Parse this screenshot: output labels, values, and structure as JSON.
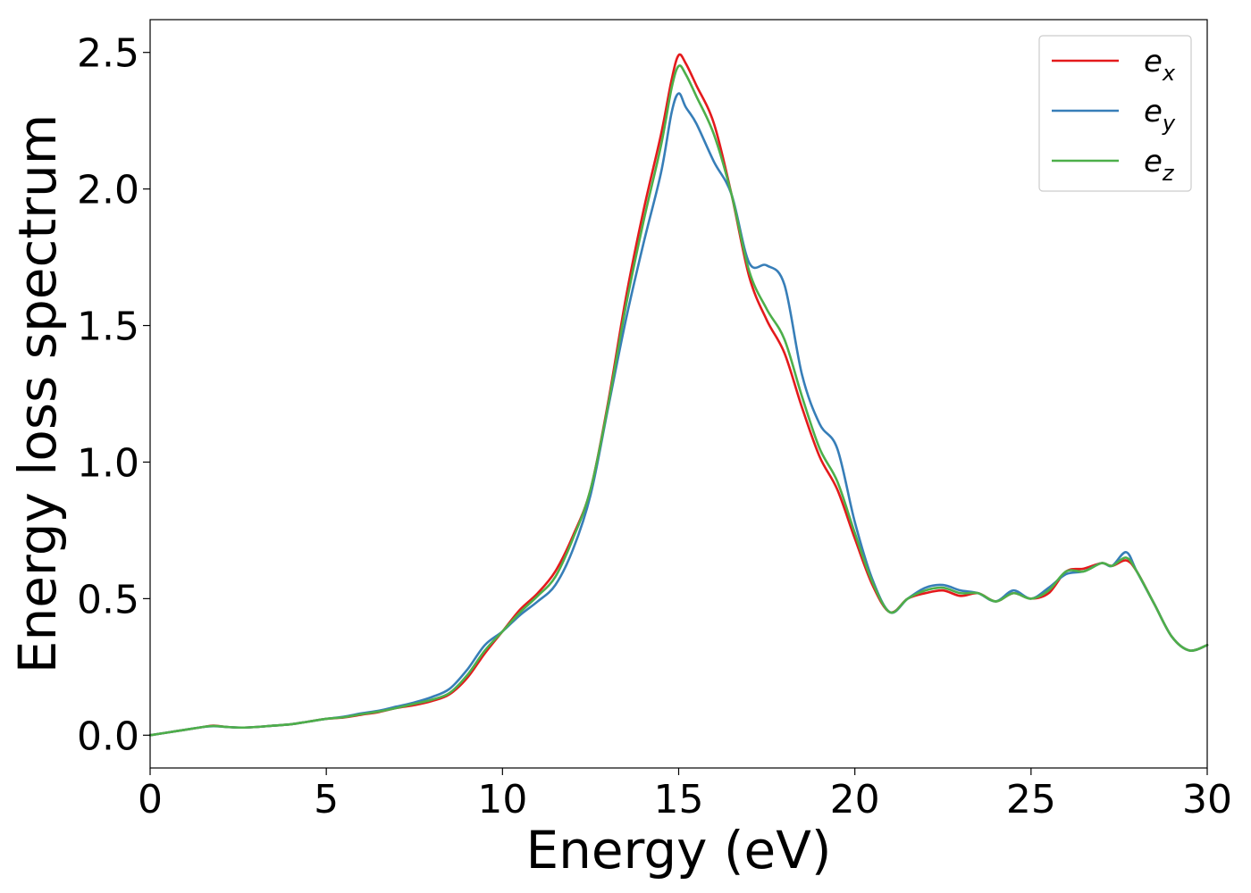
{
  "chart_data": {
    "type": "line",
    "title": "",
    "xlabel": "Energy (eV)",
    "ylabel": "Energy loss spectrum",
    "xlim": [
      0,
      30
    ],
    "ylim": [
      -0.12,
      2.62
    ],
    "xticks": [
      0,
      5,
      10,
      15,
      20,
      25,
      30
    ],
    "xtick_labels": [
      "0",
      "5",
      "10",
      "15",
      "20",
      "25",
      "30"
    ],
    "yticks": [
      0.0,
      0.5,
      1.0,
      1.5,
      2.0,
      2.5
    ],
    "ytick_labels": [
      "0.0",
      "0.5",
      "1.0",
      "1.5",
      "2.0",
      "2.5"
    ],
    "grid": false,
    "legend_position": "top-right",
    "x": [
      0,
      0.5,
      1,
      1.5,
      1.8,
      2.2,
      2.6,
      3,
      3.5,
      4,
      4.5,
      5,
      5.5,
      6,
      6.5,
      7,
      7.5,
      8,
      8.5,
      9,
      9.5,
      10,
      10.5,
      11,
      11.5,
      12,
      12.5,
      13,
      13.5,
      14,
      14.5,
      14.8,
      15,
      15.2,
      15.5,
      16,
      16.5,
      17,
      17.5,
      18,
      18.5,
      19,
      19.5,
      20,
      20.5,
      21,
      21.5,
      22,
      22.5,
      23,
      23.5,
      24,
      24.5,
      25,
      25.5,
      26,
      26.5,
      27,
      27.3,
      27.7,
      28,
      28.5,
      29,
      29.5,
      30
    ],
    "series": [
      {
        "name_base": "e",
        "name_sub": "x",
        "color": "#e41a1c",
        "values": [
          0.0,
          0.01,
          0.02,
          0.03,
          0.035,
          0.03,
          0.028,
          0.03,
          0.035,
          0.04,
          0.05,
          0.06,
          0.065,
          0.075,
          0.085,
          0.1,
          0.11,
          0.125,
          0.15,
          0.21,
          0.3,
          0.38,
          0.46,
          0.52,
          0.6,
          0.73,
          0.9,
          1.22,
          1.6,
          1.92,
          2.2,
          2.4,
          2.49,
          2.46,
          2.38,
          2.24,
          1.98,
          1.68,
          1.52,
          1.4,
          1.2,
          1.02,
          0.9,
          0.72,
          0.55,
          0.45,
          0.5,
          0.52,
          0.53,
          0.51,
          0.52,
          0.49,
          0.52,
          0.5,
          0.52,
          0.6,
          0.61,
          0.63,
          0.62,
          0.64,
          0.6,
          0.48,
          0.36,
          0.31,
          0.33
        ]
      },
      {
        "name_base": "e",
        "name_sub": "y",
        "color": "#377eb8",
        "values": [
          0.0,
          0.01,
          0.02,
          0.03,
          0.033,
          0.03,
          0.028,
          0.03,
          0.035,
          0.04,
          0.05,
          0.06,
          0.068,
          0.08,
          0.09,
          0.105,
          0.12,
          0.14,
          0.17,
          0.24,
          0.33,
          0.38,
          0.44,
          0.49,
          0.55,
          0.68,
          0.88,
          1.2,
          1.52,
          1.8,
          2.06,
          2.28,
          2.35,
          2.3,
          2.24,
          2.1,
          1.98,
          1.73,
          1.72,
          1.65,
          1.32,
          1.14,
          1.05,
          0.78,
          0.57,
          0.45,
          0.5,
          0.54,
          0.55,
          0.53,
          0.52,
          0.49,
          0.53,
          0.5,
          0.54,
          0.59,
          0.6,
          0.63,
          0.62,
          0.67,
          0.6,
          0.48,
          0.36,
          0.31,
          0.33
        ]
      },
      {
        "name_base": "e",
        "name_sub": "z",
        "color": "#4daf4a",
        "values": [
          0.0,
          0.01,
          0.02,
          0.03,
          0.034,
          0.03,
          0.028,
          0.03,
          0.035,
          0.04,
          0.05,
          0.06,
          0.066,
          0.077,
          0.087,
          0.1,
          0.115,
          0.13,
          0.155,
          0.22,
          0.31,
          0.38,
          0.45,
          0.51,
          0.58,
          0.72,
          0.9,
          1.21,
          1.57,
          1.88,
          2.16,
          2.37,
          2.45,
          2.42,
          2.34,
          2.2,
          1.98,
          1.7,
          1.56,
          1.45,
          1.24,
          1.05,
          0.93,
          0.74,
          0.56,
          0.45,
          0.5,
          0.53,
          0.54,
          0.52,
          0.52,
          0.49,
          0.52,
          0.5,
          0.53,
          0.6,
          0.6,
          0.63,
          0.62,
          0.65,
          0.6,
          0.48,
          0.36,
          0.31,
          0.33
        ]
      }
    ]
  }
}
